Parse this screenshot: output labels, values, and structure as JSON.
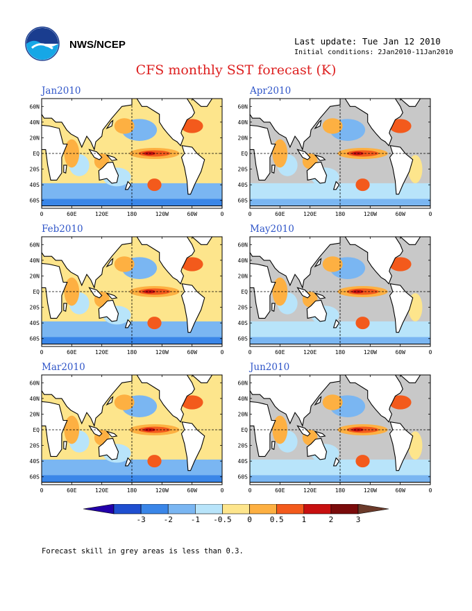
{
  "header": {
    "org": "NWS/NCEP",
    "last_update": "Last update: Tue Jan 12 2010",
    "initial_conditions": "Initial conditions: 2Jan2010-11Jan2010",
    "title": "CFS monthly SST forecast (K)"
  },
  "panels": [
    {
      "month": "Jan2010"
    },
    {
      "month": "Apr2010"
    },
    {
      "month": "Feb2010"
    },
    {
      "month": "May2010"
    },
    {
      "month": "Mar2010"
    },
    {
      "month": "Jun2010"
    }
  ],
  "axes": {
    "lat_labels": [
      "60N",
      "40N",
      "20N",
      "EQ",
      "20S",
      "40S",
      "60S"
    ],
    "lon_labels": [
      "0",
      "60E",
      "120E",
      "180",
      "120W",
      "60W",
      "0"
    ]
  },
  "colorbar": {
    "labels": [
      "-3",
      "-2",
      "-1",
      "-0.5",
      "0",
      "0.5",
      "1",
      "2",
      "3"
    ],
    "colors": [
      "#2200aa",
      "#1f4fd0",
      "#3a86e8",
      "#7ab6f2",
      "#b8e4fa",
      "#fde58c",
      "#fdb042",
      "#f35a1c",
      "#c81010",
      "#7a0b0b",
      "#6b3a2a"
    ]
  },
  "footnote": "Forecast skill in grey areas is less than 0.3."
}
